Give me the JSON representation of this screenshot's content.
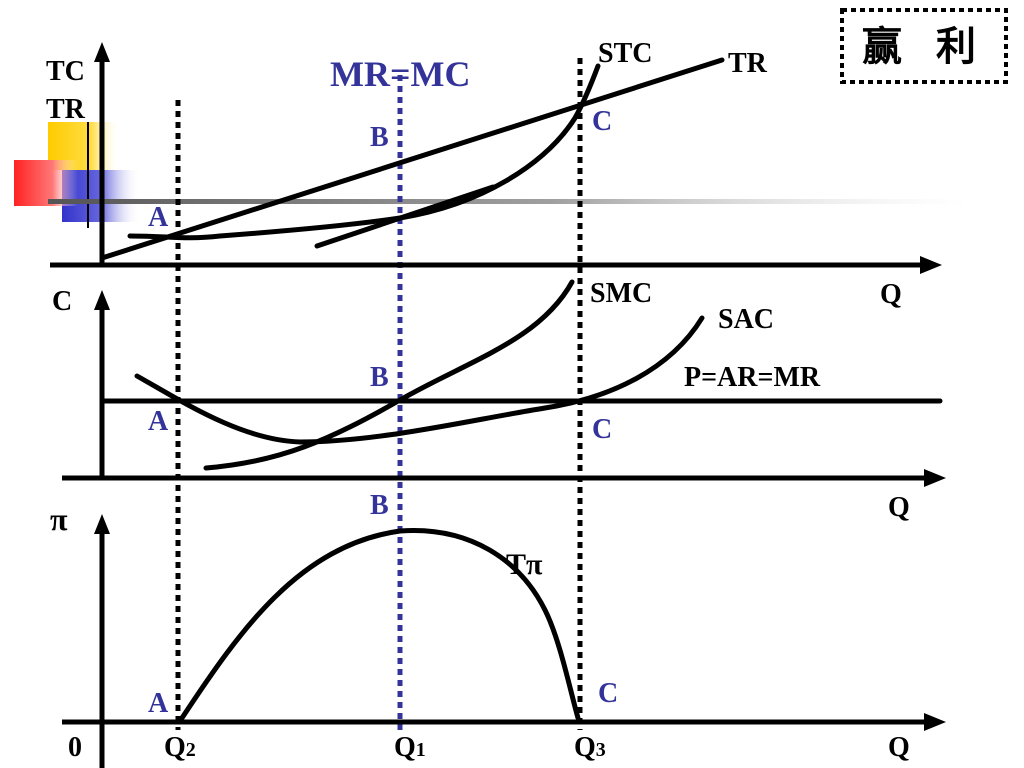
{
  "title_box": {
    "text": "赢  利"
  },
  "condition_label": "MR=MC",
  "panel_top": {
    "y_axis_label_1": "TC",
    "y_axis_label_2": "TR",
    "x_axis_label": "Q",
    "curve_stc": "STC",
    "curve_tr": "TR",
    "point_a": "A",
    "point_b": "B",
    "point_c": "C"
  },
  "panel_middle": {
    "y_axis_label": "C",
    "x_axis_label": "Q",
    "curve_smc": "SMC",
    "curve_sac": "SAC",
    "price_line": "P=AR=MR",
    "point_a": "A",
    "point_b": "B",
    "point_c": "C"
  },
  "panel_bottom": {
    "y_axis_label": "π",
    "x_axis_label": "Q",
    "curve_profit": "Tπ",
    "point_a": "A",
    "point_b": "B",
    "point_c": "C",
    "origin": "0",
    "q2": "Q",
    "q2_sub": "2",
    "q1": "Q",
    "q1_sub": "1",
    "q3": "Q",
    "q3_sub": "3"
  },
  "colors": {
    "accent_blue": "#333399",
    "deco_yellow": "#ffcc00",
    "deco_blue": "#3333cc",
    "deco_red": "#ff3333"
  }
}
